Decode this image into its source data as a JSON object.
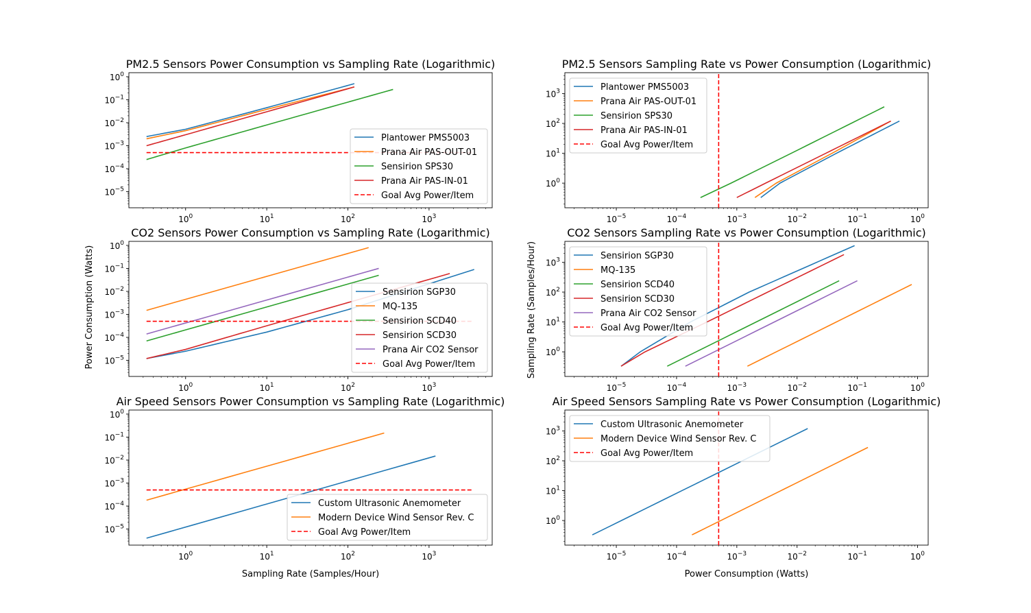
{
  "figure": {
    "ylabel_left": "Power Consumption (Watts)",
    "ylabel_right": "Sampling Rate (Samples/Hour)",
    "xlabel_left": "Sampling Rate (Samples/Hour)",
    "xlabel_right": "Power Consumption (Watts)"
  },
  "chart_data": [
    {
      "type": "line",
      "title": "PM2.5 Sensors Power Consumption vs Sampling Rate (Logarithmic)",
      "xscale": "log",
      "yscale": "log",
      "xlim": [
        0.2,
        6000
      ],
      "ylim": [
        2e-06,
        1.5
      ],
      "xticks": [
        {
          "v": 1,
          "label": "10^0"
        },
        {
          "v": 10,
          "label": "10^1"
        },
        {
          "v": 100,
          "label": "10^2"
        },
        {
          "v": 1000,
          "label": "10^3"
        }
      ],
      "yticks": [
        {
          "v": 1e-05,
          "label": "10^-5"
        },
        {
          "v": 0.0001,
          "label": "10^-4"
        },
        {
          "v": 0.001,
          "label": "10^-3"
        },
        {
          "v": 0.01,
          "label": "10^-2"
        },
        {
          "v": 0.1,
          "label": "10^-1"
        },
        {
          "v": 1,
          "label": "10^0"
        }
      ],
      "legend": "lower-right",
      "series": [
        {
          "name": "Plantower PMS5003",
          "color": "#1f77b4",
          "x": [
            0.33,
            1,
            10,
            120
          ],
          "y": [
            0.0025,
            0.0052,
            0.045,
            0.5
          ]
        },
        {
          "name": "Prana Air PAS-OUT-01",
          "color": "#ff7f0e",
          "x": [
            0.33,
            1,
            10,
            120
          ],
          "y": [
            0.002,
            0.0045,
            0.038,
            0.36
          ]
        },
        {
          "name": "Sensirion SPS30",
          "color": "#2ca02c",
          "x": [
            0.33,
            1,
            10,
            360
          ],
          "y": [
            0.00025,
            0.0008,
            0.008,
            0.28
          ]
        },
        {
          "name": "Prana Air PAS-IN-01",
          "color": "#d62728",
          "x": [
            0.33,
            1,
            10,
            120
          ],
          "y": [
            0.001,
            0.003,
            0.03,
            0.36
          ]
        },
        {
          "name": "Goal Avg Power/Item",
          "color": "#ff0000",
          "dashed": true,
          "x": [
            0.33,
            3500
          ],
          "y": [
            0.0005,
            0.0005
          ]
        }
      ]
    },
    {
      "type": "line",
      "title": "PM2.5 Sensors Sampling Rate vs Power Consumption (Logarithmic)",
      "xscale": "log",
      "yscale": "log",
      "xlim": [
        1.4e-06,
        1.5
      ],
      "ylim": [
        0.15,
        5000
      ],
      "xticks": [
        {
          "v": 1e-05,
          "label": "10^-5"
        },
        {
          "v": 0.0001,
          "label": "10^-4"
        },
        {
          "v": 0.001,
          "label": "10^-3"
        },
        {
          "v": 0.01,
          "label": "10^-2"
        },
        {
          "v": 0.1,
          "label": "10^-1"
        },
        {
          "v": 1,
          "label": "10^0"
        }
      ],
      "yticks": [
        {
          "v": 1,
          "label": "10^0"
        },
        {
          "v": 10,
          "label": "10^1"
        },
        {
          "v": 100,
          "label": "10^2"
        },
        {
          "v": 1000,
          "label": "10^3"
        }
      ],
      "legend": "upper-left",
      "series": [
        {
          "name": "Plantower PMS5003",
          "color": "#1f77b4",
          "x": [
            0.0025,
            0.0052,
            0.045,
            0.5
          ],
          "y": [
            0.33,
            1,
            10,
            120
          ]
        },
        {
          "name": "Prana Air PAS-OUT-01",
          "color": "#ff7f0e",
          "x": [
            0.002,
            0.0045,
            0.038,
            0.36
          ],
          "y": [
            0.33,
            1,
            10,
            120
          ]
        },
        {
          "name": "Sensirion SPS30",
          "color": "#2ca02c",
          "x": [
            0.00025,
            0.0008,
            0.008,
            0.28
          ],
          "y": [
            0.33,
            1,
            10,
            360
          ]
        },
        {
          "name": "Prana Air PAS-IN-01",
          "color": "#d62728",
          "x": [
            0.001,
            0.003,
            0.03,
            0.36
          ],
          "y": [
            0.33,
            1,
            10,
            120
          ]
        },
        {
          "name": "Goal Avg Power/Item",
          "color": "#ff0000",
          "dashed": true,
          "x": [
            0.0005,
            0.0005
          ],
          "y": [
            0.15,
            5000
          ]
        }
      ]
    },
    {
      "type": "line",
      "title": "CO2 Sensors Power Consumption vs Sampling Rate (Logarithmic)",
      "xscale": "log",
      "yscale": "log",
      "xlim": [
        0.2,
        6000
      ],
      "ylim": [
        2e-06,
        1.5
      ],
      "xticks": [
        {
          "v": 1,
          "label": "10^0"
        },
        {
          "v": 10,
          "label": "10^1"
        },
        {
          "v": 100,
          "label": "10^2"
        },
        {
          "v": 1000,
          "label": "10^3"
        }
      ],
      "yticks": [
        {
          "v": 1e-05,
          "label": "10^-5"
        },
        {
          "v": 0.0001,
          "label": "10^-4"
        },
        {
          "v": 0.001,
          "label": "10^-3"
        },
        {
          "v": 0.01,
          "label": "10^-2"
        },
        {
          "v": 0.1,
          "label": "10^-1"
        },
        {
          "v": 1,
          "label": "10^0"
        }
      ],
      "legend": "lower-right",
      "series": [
        {
          "name": "Sensirion SGP30",
          "color": "#1f77b4",
          "x": [
            0.33,
            1,
            10,
            100,
            3600
          ],
          "y": [
            1.2e-05,
            2.5e-05,
            0.00017,
            0.0016,
            0.09
          ]
        },
        {
          "name": "MQ-135",
          "color": "#ff7f0e",
          "x": [
            0.33,
            180
          ],
          "y": [
            0.0015,
            0.8
          ]
        },
        {
          "name": "Sensirion SCD40",
          "color": "#2ca02c",
          "x": [
            0.33,
            240
          ],
          "y": [
            7e-05,
            0.05
          ]
        },
        {
          "name": "Sensirion SCD30",
          "color": "#d62728",
          "x": [
            0.33,
            1,
            10,
            1800
          ],
          "y": [
            1.2e-05,
            3e-05,
            0.00032,
            0.06
          ]
        },
        {
          "name": "Prana Air CO2 Sensor",
          "color": "#9467bd",
          "x": [
            0.33,
            240
          ],
          "y": [
            0.00014,
            0.1
          ]
        },
        {
          "name": "Goal Avg Power/Item",
          "color": "#ff0000",
          "dashed": true,
          "x": [
            0.33,
            3500
          ],
          "y": [
            0.0005,
            0.0005
          ]
        }
      ]
    },
    {
      "type": "line",
      "title": "CO2 Sensors Sampling Rate vs Power Consumption (Logarithmic)",
      "xscale": "log",
      "yscale": "log",
      "xlim": [
        1.4e-06,
        1.5
      ],
      "ylim": [
        0.15,
        5000
      ],
      "xticks": [
        {
          "v": 1e-05,
          "label": "10^-5"
        },
        {
          "v": 0.0001,
          "label": "10^-4"
        },
        {
          "v": 0.001,
          "label": "10^-3"
        },
        {
          "v": 0.01,
          "label": "10^-2"
        },
        {
          "v": 0.1,
          "label": "10^-1"
        },
        {
          "v": 1,
          "label": "10^0"
        }
      ],
      "yticks": [
        {
          "v": 1,
          "label": "10^0"
        },
        {
          "v": 10,
          "label": "10^1"
        },
        {
          "v": 100,
          "label": "10^2"
        },
        {
          "v": 1000,
          "label": "10^3"
        }
      ],
      "legend": "upper-left",
      "series": [
        {
          "name": "Sensirion SGP30",
          "color": "#1f77b4",
          "x": [
            1.2e-05,
            2.5e-05,
            0.00017,
            0.0016,
            0.09
          ],
          "y": [
            0.33,
            1,
            10,
            100,
            3600
          ]
        },
        {
          "name": "MQ-135",
          "color": "#ff7f0e",
          "x": [
            0.0015,
            0.8
          ],
          "y": [
            0.33,
            180
          ]
        },
        {
          "name": "Sensirion SCD40",
          "color": "#2ca02c",
          "x": [
            7e-05,
            0.05
          ],
          "y": [
            0.33,
            240
          ]
        },
        {
          "name": "Sensirion SCD30",
          "color": "#d62728",
          "x": [
            1.2e-05,
            3e-05,
            0.00032,
            0.06
          ],
          "y": [
            0.33,
            1,
            10,
            1800
          ]
        },
        {
          "name": "Prana Air CO2 Sensor",
          "color": "#9467bd",
          "x": [
            0.00014,
            0.1
          ],
          "y": [
            0.33,
            240
          ]
        },
        {
          "name": "Goal Avg Power/Item",
          "color": "#ff0000",
          "dashed": true,
          "x": [
            0.0005,
            0.0005
          ],
          "y": [
            0.15,
            5000
          ]
        }
      ]
    },
    {
      "type": "line",
      "title": "Air Speed Sensors Power Consumption vs Sampling Rate (Logarithmic)",
      "xscale": "log",
      "yscale": "log",
      "xlim": [
        0.2,
        6000
      ],
      "ylim": [
        2e-06,
        1.5
      ],
      "xticks": [
        {
          "v": 1,
          "label": "10^0"
        },
        {
          "v": 10,
          "label": "10^1"
        },
        {
          "v": 100,
          "label": "10^2"
        },
        {
          "v": 1000,
          "label": "10^3"
        }
      ],
      "yticks": [
        {
          "v": 1e-05,
          "label": "10^-5"
        },
        {
          "v": 0.0001,
          "label": "10^-4"
        },
        {
          "v": 0.001,
          "label": "10^-3"
        },
        {
          "v": 0.01,
          "label": "10^-2"
        },
        {
          "v": 0.1,
          "label": "10^-1"
        },
        {
          "v": 1,
          "label": "10^0"
        }
      ],
      "legend": "lower-right",
      "series": [
        {
          "name": "Custom Ultrasonic Anemometer",
          "color": "#1f77b4",
          "x": [
            0.33,
            1200
          ],
          "y": [
            4e-06,
            0.015
          ]
        },
        {
          "name": "Modern Device Wind Sensor Rev. C",
          "color": "#ff7f0e",
          "x": [
            0.33,
            280
          ],
          "y": [
            0.00018,
            0.15
          ]
        },
        {
          "name": "Goal Avg Power/Item",
          "color": "#ff0000",
          "dashed": true,
          "x": [
            0.33,
            3500
          ],
          "y": [
            0.0005,
            0.0005
          ]
        }
      ]
    },
    {
      "type": "line",
      "title": "Air Speed Sensors Sampling Rate vs Power Consumption (Logarithmic)",
      "xscale": "log",
      "yscale": "log",
      "xlim": [
        1.4e-06,
        1.5
      ],
      "ylim": [
        0.15,
        5000
      ],
      "xticks": [
        {
          "v": 1e-05,
          "label": "10^-5"
        },
        {
          "v": 0.0001,
          "label": "10^-4"
        },
        {
          "v": 0.001,
          "label": "10^-3"
        },
        {
          "v": 0.01,
          "label": "10^-2"
        },
        {
          "v": 0.1,
          "label": "10^-1"
        },
        {
          "v": 1,
          "label": "10^0"
        }
      ],
      "yticks": [
        {
          "v": 1,
          "label": "10^0"
        },
        {
          "v": 10,
          "label": "10^1"
        },
        {
          "v": 100,
          "label": "10^2"
        },
        {
          "v": 1000,
          "label": "10^3"
        }
      ],
      "legend": "upper-left",
      "series": [
        {
          "name": "Custom Ultrasonic Anemometer",
          "color": "#1f77b4",
          "x": [
            4e-06,
            0.015
          ],
          "y": [
            0.33,
            1200
          ]
        },
        {
          "name": "Modern Device Wind Sensor Rev. C",
          "color": "#ff7f0e",
          "x": [
            0.00018,
            0.15
          ],
          "y": [
            0.33,
            280
          ]
        },
        {
          "name": "Goal Avg Power/Item",
          "color": "#ff0000",
          "dashed": true,
          "x": [
            0.0005,
            0.0005
          ],
          "y": [
            0.15,
            5000
          ]
        }
      ]
    }
  ]
}
